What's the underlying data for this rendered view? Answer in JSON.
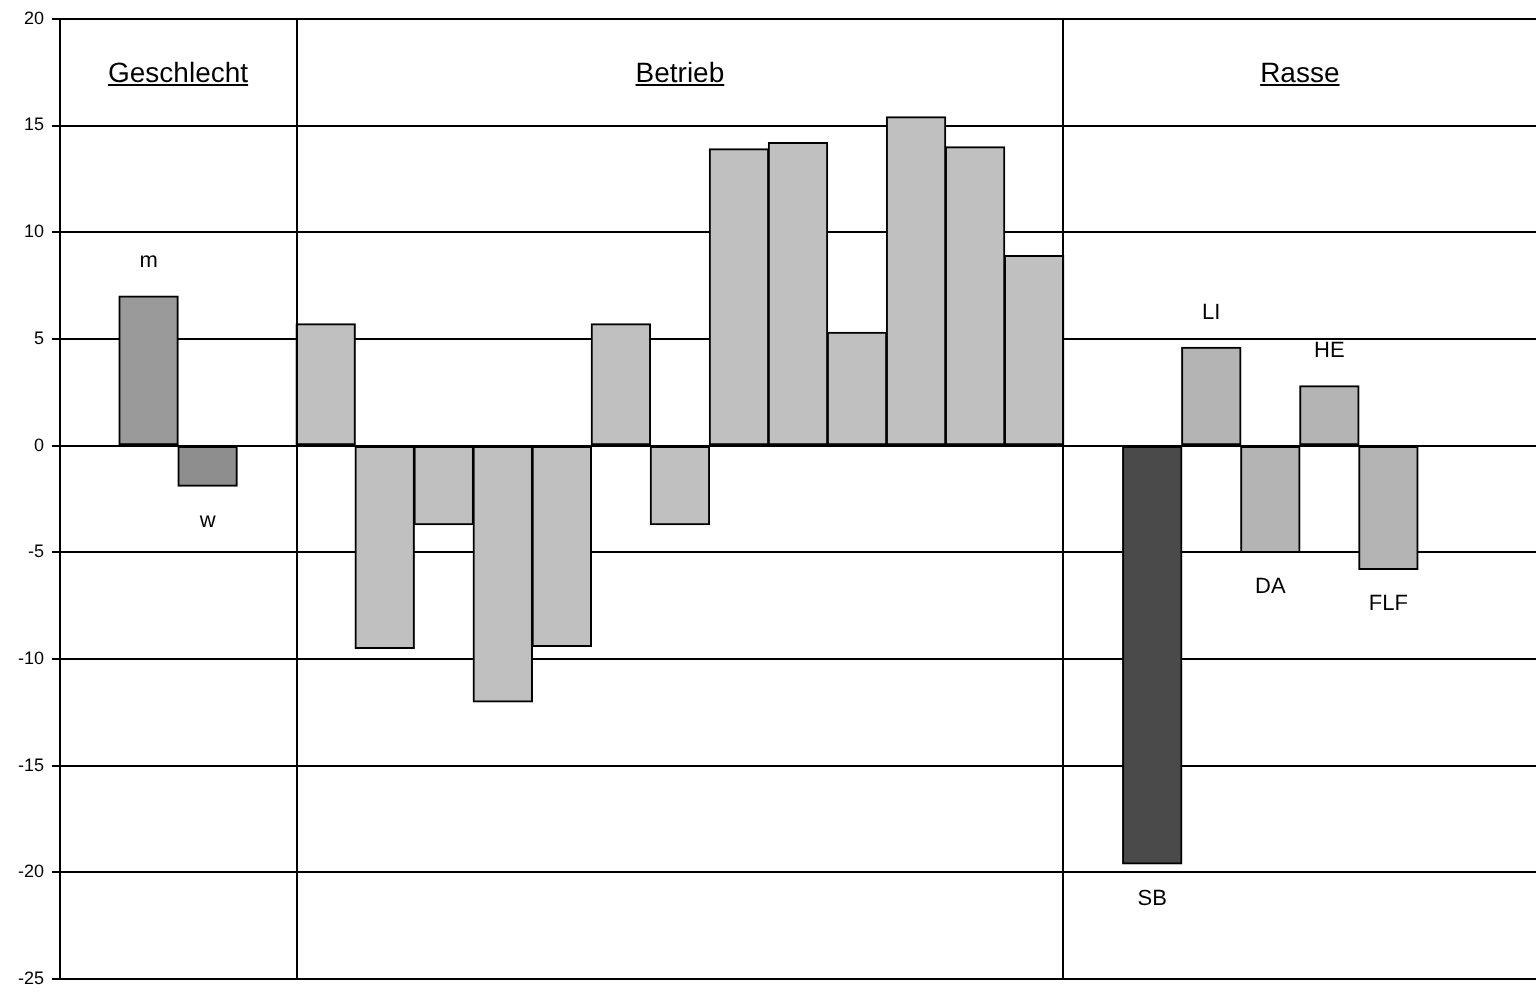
{
  "chart_data": {
    "type": "bar",
    "categories": [
      null,
      "m",
      "w",
      null,
      null,
      null,
      null,
      null,
      null,
      null,
      null,
      null,
      null,
      null,
      null,
      null,
      null,
      null,
      "SB",
      "LI",
      "DA",
      "HE",
      "FLF",
      null,
      null
    ],
    "values": [
      null,
      7.0,
      -1.9,
      null,
      5.7,
      -9.5,
      -3.7,
      -12.0,
      -9.4,
      5.7,
      -3.7,
      13.9,
      14.2,
      5.3,
      15.4,
      14.0,
      8.9,
      null,
      -19.6,
      4.6,
      -5.0,
      2.8,
      -5.8,
      null,
      null
    ],
    "colors": [
      "#c0c0c0",
      "#9a9a9a",
      "#8e8e8e",
      "#c0c0c0",
      "#c0c0c0",
      "#c0c0c0",
      "#c0c0c0",
      "#c0c0c0",
      "#c0c0c0",
      "#c0c0c0",
      "#c0c0c0",
      "#c0c0c0",
      "#c0c0c0",
      "#c0c0c0",
      "#c0c0c0",
      "#c0c0c0",
      "#c0c0c0",
      "#c0c0c0",
      "#4a4a4a",
      "#b4b4b4",
      "#b4b4b4",
      "#b4b4b4",
      "#b4b4b4",
      "#c0c0c0",
      "#c0c0c0"
    ],
    "ylim": [
      -25,
      20
    ],
    "yticks": [
      -25,
      -20,
      -15,
      -10,
      -5,
      0,
      5,
      10,
      15,
      20
    ],
    "grid": "y",
    "legend": false,
    "tick_labels": "y",
    "annotations": [
      "Geschlecht",
      "Betrieb",
      "Rasse"
    ]
  }
}
